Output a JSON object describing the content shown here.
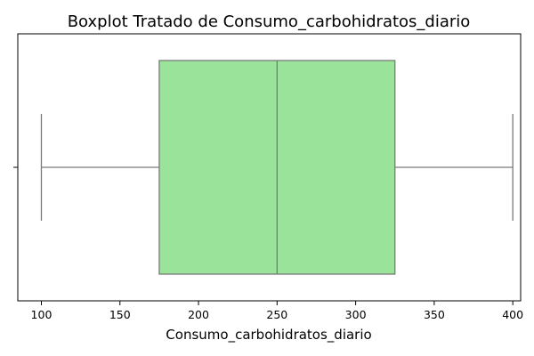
{
  "chart_data": {
    "type": "boxplot",
    "title": "Boxplot Tratado de Consumo_carbohidratos_diario",
    "xlabel": "Consumo_carbohidratos_diario",
    "ylabel": "",
    "xlim": [
      85,
      405
    ],
    "xticks": [
      100,
      150,
      200,
      250,
      300,
      350,
      400
    ],
    "xtick_labels": [
      "100",
      "150",
      "200",
      "250",
      "300",
      "350",
      "400"
    ],
    "orientation": "horizontal",
    "grid": false,
    "box": {
      "whisker_low": 100,
      "q1": 175,
      "median": 250,
      "q3": 325,
      "whisker_high": 400
    },
    "colors": {
      "box_fill": "#9ae39b",
      "line": "#7a7a7a",
      "axis": "#000000"
    }
  }
}
